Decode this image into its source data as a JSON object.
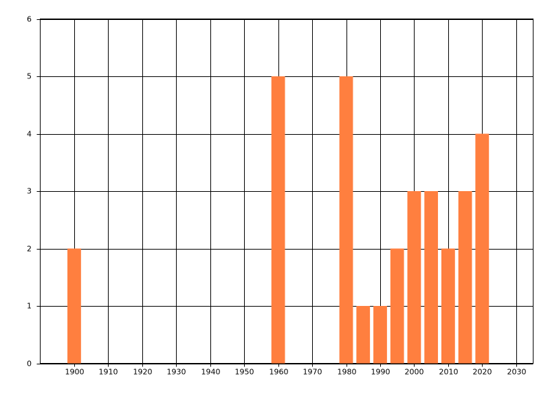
{
  "chart_data": {
    "type": "bar",
    "x": [
      1900,
      1960,
      1980,
      1985,
      1990,
      1995,
      2000,
      2005,
      2010,
      2015,
      2020
    ],
    "values": [
      2,
      5,
      5,
      1,
      1,
      2,
      3,
      3,
      2,
      3,
      4
    ],
    "color": "#ff7f3f",
    "xlim": [
      1890,
      2035
    ],
    "xticks": [
      1900,
      1910,
      1920,
      1930,
      1940,
      1950,
      1960,
      1970,
      1980,
      1990,
      2000,
      2010,
      2020,
      2030
    ],
    "ylim": [
      0,
      6
    ],
    "yticks": [
      0,
      1,
      2,
      3,
      4,
      5,
      6
    ],
    "grid": true
  }
}
